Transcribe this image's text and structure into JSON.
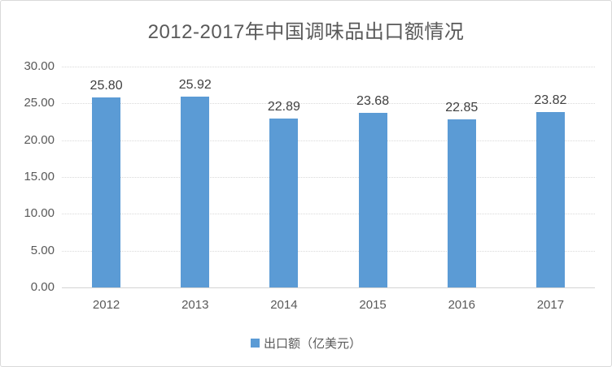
{
  "title": "2012-2017年中国调味品出口额情况",
  "legend": {
    "label": "出口额（亿美元）"
  },
  "colors": {
    "bar": "#5B9BD5",
    "title_text": "#595959",
    "axis_text": "#595959",
    "data_label_text": "#404040",
    "gridline": "#D9D9D9",
    "border": "#D9D9D9",
    "background": "#FFFFFF"
  },
  "chart_data": {
    "type": "bar",
    "title": "2012-2017年中国调味品出口额情况",
    "categories": [
      "2012",
      "2013",
      "2014",
      "2015",
      "2016",
      "2017"
    ],
    "series": [
      {
        "name": "出口额（亿美元）",
        "values": [
          25.8,
          25.92,
          22.89,
          23.68,
          22.85,
          23.82
        ],
        "value_labels": [
          "25.80",
          "25.92",
          "22.89",
          "23.68",
          "22.85",
          "23.82"
        ],
        "color": "#5B9BD5"
      }
    ],
    "xlabel": "",
    "ylabel": "",
    "ylim": [
      0,
      30
    ],
    "ytick_interval": 5,
    "ytick_labels": [
      "0.00",
      "5.00",
      "10.00",
      "15.00",
      "20.00",
      "25.00",
      "30.00"
    ],
    "grid": true,
    "gridline_style": "dotted",
    "legend_position": "bottom",
    "data_labels": true
  }
}
